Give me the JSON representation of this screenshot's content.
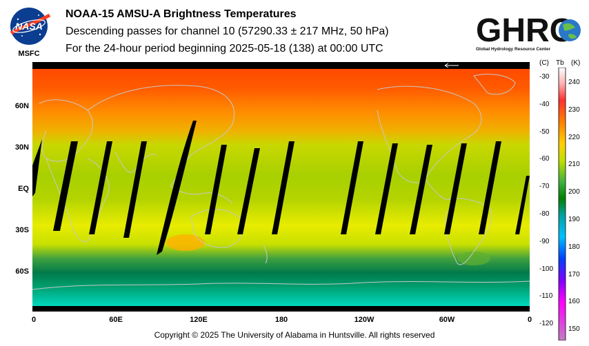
{
  "header": {
    "title": "NOAA-15 AMSU-A Brightness Temperatures",
    "subtitle": "Descending passes for channel 10 (57290.33 ± 217 MHz, 50 hPa)",
    "period": "For the 24-hour period beginning 2025-05-18 (138) at 00:00 UTC"
  },
  "logos": {
    "nasa_text": "NASA",
    "nasa_sub": "MSFC",
    "ghrc_text": "GHRC",
    "ghrc_sub": "Global Hydrology Resource Center"
  },
  "map": {
    "lat_labels": [
      "60N",
      "30N",
      "EQ",
      "30S",
      "60S"
    ],
    "lon_labels": [
      "0",
      "60E",
      "120E",
      "180",
      "120W",
      "60W",
      "0"
    ],
    "colors": {
      "pole_north": "#ff4a00",
      "subpolar_north": "#ff8c00",
      "midlat": "#c8d800",
      "tropics": "#b4d400",
      "sublat_south": "#e8ec00",
      "warm_spot": "#ffb000",
      "southern_band": "#007a4a",
      "antarctic": "#00c8b4",
      "gap": "#000000",
      "coast": "#c8c8c8"
    }
  },
  "colorbar": {
    "header_c": "(C)",
    "header_tb": "Tb",
    "header_k": "(K)",
    "c_ticks": [
      "-30",
      "-40",
      "-50",
      "-60",
      "-70",
      "-80",
      "-90",
      "-100",
      "-110",
      "-120"
    ],
    "k_ticks": [
      "240",
      "230",
      "220",
      "210",
      "200",
      "190",
      "180",
      "170",
      "160",
      "150"
    ],
    "gradient": [
      "#ffffff",
      "#ff3030",
      "#ff8000",
      "#ffd000",
      "#c0e000",
      "#40b040",
      "#008000",
      "#00a0a0",
      "#00c0ff",
      "#0040ff",
      "#8000ff",
      "#ff00ff",
      "#c080c0"
    ]
  },
  "footer": {
    "copyright": "Copyright © 2025 The University of Alabama in Huntsville.  All rights reserved"
  }
}
